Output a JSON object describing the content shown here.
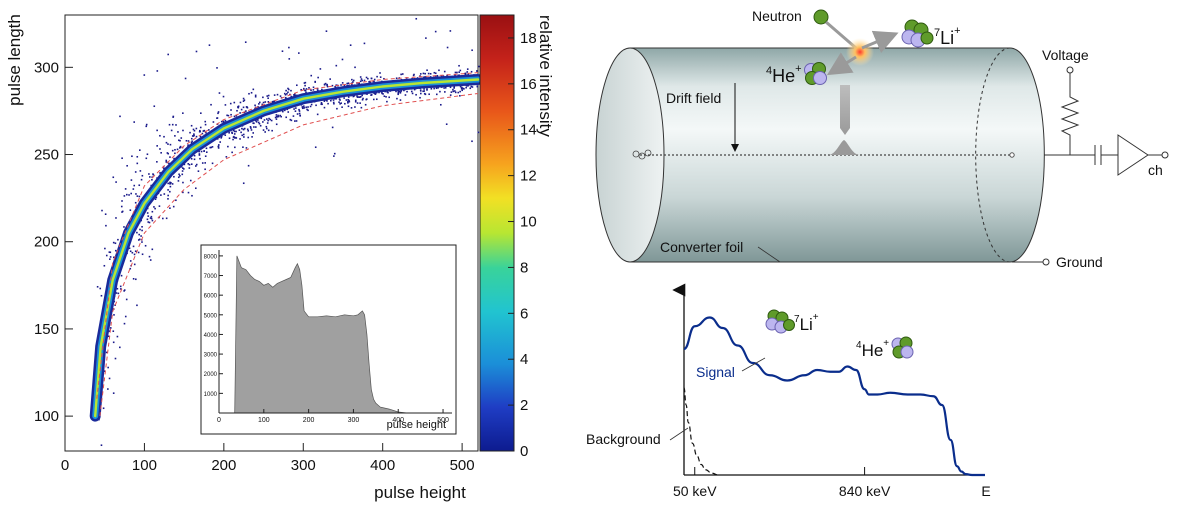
{
  "chart_data": [
    {
      "type": "heatmap",
      "xlabel": "pulse height",
      "ylabel": "pulse length",
      "xlim": [
        0,
        520
      ],
      "ylim": [
        80,
        330
      ],
      "xticks": [
        0,
        100,
        200,
        300,
        400,
        500
      ],
      "yticks": [
        100,
        150,
        200,
        250,
        300
      ],
      "colorbar": {
        "label": "relative intensity",
        "range": [
          0,
          19
        ],
        "ticks": [
          0,
          2,
          4,
          6,
          8,
          10,
          12,
          14,
          16,
          18
        ]
      },
      "main_curve": [
        {
          "x": 38,
          "y": 100
        },
        {
          "x": 45,
          "y": 140
        },
        {
          "x": 60,
          "y": 178
        },
        {
          "x": 80,
          "y": 205
        },
        {
          "x": 100,
          "y": 222
        },
        {
          "x": 130,
          "y": 240
        },
        {
          "x": 160,
          "y": 253
        },
        {
          "x": 200,
          "y": 265
        },
        {
          "x": 250,
          "y": 275
        },
        {
          "x": 300,
          "y": 282
        },
        {
          "x": 350,
          "y": 286
        },
        {
          "x": 400,
          "y": 289
        },
        {
          "x": 450,
          "y": 291
        },
        {
          "x": 520,
          "y": 293
        }
      ],
      "cut_upper": [
        {
          "x": 40,
          "y": 110
        },
        {
          "x": 60,
          "y": 188
        },
        {
          "x": 100,
          "y": 232
        },
        {
          "x": 150,
          "y": 255
        },
        {
          "x": 200,
          "y": 270
        },
        {
          "x": 300,
          "y": 287
        },
        {
          "x": 400,
          "y": 293
        },
        {
          "x": 520,
          "y": 297
        }
      ],
      "cut_lower": [
        {
          "x": 44,
          "y": 100
        },
        {
          "x": 60,
          "y": 160
        },
        {
          "x": 100,
          "y": 205
        },
        {
          "x": 150,
          "y": 230
        },
        {
          "x": 200,
          "y": 247
        },
        {
          "x": 300,
          "y": 267
        },
        {
          "x": 400,
          "y": 278
        },
        {
          "x": 520,
          "y": 285
        }
      ],
      "inset": {
        "type": "area",
        "xlabel": "pulse height",
        "xlim": [
          0,
          520
        ],
        "ylim": [
          0,
          8300
        ],
        "xticks": [
          0,
          100,
          200,
          300,
          400,
          500
        ],
        "yticks": [
          1000,
          2000,
          3000,
          4000,
          5000,
          6000,
          7000,
          8000
        ],
        "x": [
          35,
          40,
          50,
          60,
          70,
          80,
          90,
          100,
          110,
          120,
          130,
          140,
          150,
          160,
          170,
          175,
          180,
          185,
          190,
          200,
          220,
          240,
          260,
          280,
          300,
          310,
          320,
          325,
          330,
          335,
          340,
          345,
          350,
          360,
          380,
          400,
          420
        ],
        "values": [
          0,
          8000,
          7400,
          7300,
          7000,
          6800,
          6700,
          6500,
          6600,
          6400,
          6600,
          6700,
          6800,
          6900,
          7400,
          7600,
          7300,
          6500,
          5200,
          4900,
          4900,
          4950,
          4900,
          5000,
          4950,
          5000,
          5200,
          5000,
          4000,
          2500,
          1200,
          700,
          500,
          300,
          200,
          50,
          0
        ]
      }
    },
    {
      "type": "line",
      "xlabel": "E",
      "xticks": [
        "50 keV",
        "840 keV"
      ],
      "series": [
        {
          "name": "Signal",
          "color": "#0a2d8c",
          "x": [
            0,
            50,
            120,
            180,
            250,
            320,
            400,
            480,
            560,
            620,
            680,
            720,
            760,
            800,
            840,
            860,
            900,
            960,
            1040,
            1100,
            1160,
            1200,
            1240,
            1270,
            1290,
            1310,
            1340,
            1400
          ],
          "values": [
            0.72,
            0.85,
            0.9,
            0.84,
            0.74,
            0.64,
            0.57,
            0.54,
            0.57,
            0.6,
            0.59,
            0.59,
            0.62,
            0.6,
            0.49,
            0.46,
            0.46,
            0.47,
            0.46,
            0.46,
            0.45,
            0.4,
            0.2,
            0.05,
            0.02,
            0.005,
            0.0,
            0.0
          ]
        },
        {
          "name": "Background",
          "color": "#111111",
          "x": [
            0,
            10,
            20,
            40,
            60,
            80,
            100,
            130,
            160
          ],
          "values": [
            0.5,
            0.4,
            0.3,
            0.18,
            0.11,
            0.06,
            0.03,
            0.01,
            0.0
          ]
        }
      ]
    }
  ],
  "detector": {
    "labels": {
      "neutron": "Neutron",
      "helium": "⁴He⁺",
      "lithium": "⁷Li⁺",
      "drift_field": "Drift field",
      "converter_foil": "Converter foil",
      "voltage": "Voltage",
      "ground": "Ground",
      "ch": "ch"
    }
  },
  "spectrum": {
    "lithium_label": "⁷Li⁺",
    "helium_label": "⁴He⁺",
    "signal_label": "Signal",
    "background_label": "Background"
  },
  "colors": {
    "signal": "#0a2d8c",
    "cut_lines": "#e05050",
    "inset_fill": "#a0a0a0",
    "cylinder": "#dfe7e7",
    "neutron": "#5f9b2a",
    "lithium_sphere": "#bcb6ef"
  }
}
